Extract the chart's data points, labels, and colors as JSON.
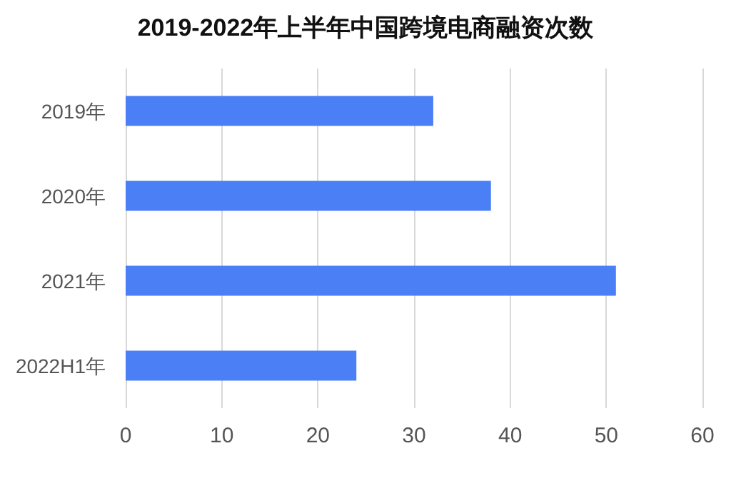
{
  "chart_data": {
    "type": "bar",
    "orientation": "horizontal",
    "title": "2019-2022年上半年中国跨境电商融资次数",
    "categories": [
      "2019年",
      "2020年",
      "2021年",
      "2022H1年"
    ],
    "values": [
      32,
      38,
      51,
      24
    ],
    "color": "#4a7ff5",
    "xlim": [
      0,
      60
    ],
    "xticks": [
      0,
      10,
      20,
      30,
      40,
      50,
      60
    ],
    "grid": "x"
  }
}
